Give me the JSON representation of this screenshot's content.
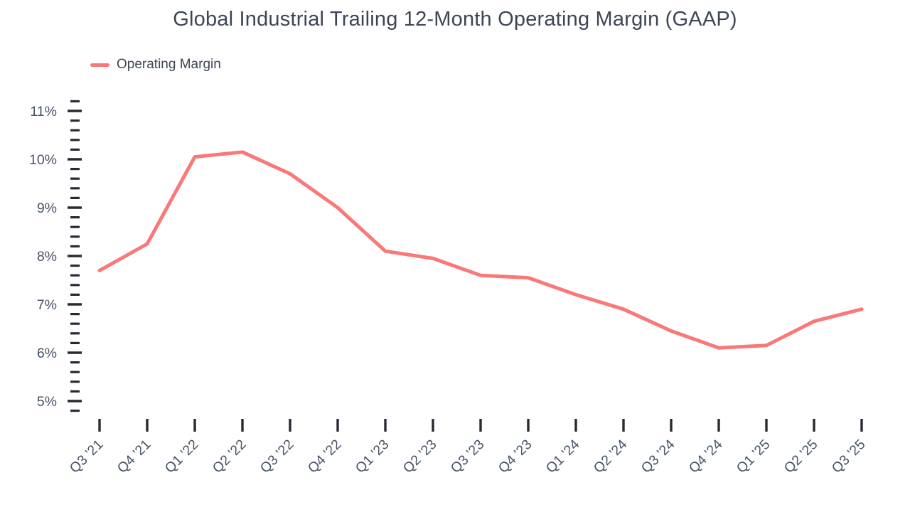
{
  "chart_data": {
    "type": "line",
    "title": "Global Industrial Trailing 12-Month Operating Margin (GAAP)",
    "legend_position": "top-left",
    "grid": false,
    "categories": [
      "Q3 '21",
      "Q4 '21",
      "Q1 '22",
      "Q2 '22",
      "Q3 '22",
      "Q4 '22",
      "Q1 '23",
      "Q2 '23",
      "Q3 '23",
      "Q4 '23",
      "Q1 '24",
      "Q2 '24",
      "Q3 '24",
      "Q4 '24",
      "Q1 '25",
      "Q2 '25",
      "Q3 '25"
    ],
    "series": [
      {
        "name": "Operating Margin",
        "values": [
          7.7,
          8.25,
          10.05,
          10.15,
          9.7,
          9.0,
          8.1,
          7.95,
          7.6,
          7.55,
          7.2,
          6.9,
          6.45,
          6.1,
          6.15,
          6.65,
          6.9
        ]
      }
    ],
    "xlabel": "",
    "ylabel": "",
    "ylim": [
      5,
      11
    ],
    "y_tick_labels": [
      "5%",
      "6%",
      "7%",
      "8%",
      "9%",
      "10%",
      "11%"
    ],
    "y_major_step": 1,
    "y_minor_step": 0.2,
    "y_minor_range": [
      4.8,
      11.2
    ],
    "colors": {
      "line": "#F97878",
      "tick": "#262B33",
      "axis_label": "#475366",
      "title": "#3D4656"
    }
  }
}
